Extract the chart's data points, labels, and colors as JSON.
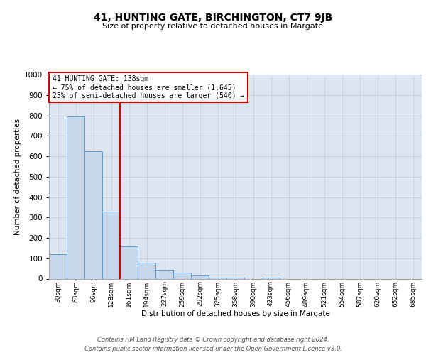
{
  "title": "41, HUNTING GATE, BIRCHINGTON, CT7 9JB",
  "subtitle": "Size of property relative to detached houses in Margate",
  "xlabel": "Distribution of detached houses by size in Margate",
  "ylabel": "Number of detached properties",
  "bin_labels": [
    "30sqm",
    "63sqm",
    "96sqm",
    "128sqm",
    "161sqm",
    "194sqm",
    "227sqm",
    "259sqm",
    "292sqm",
    "325sqm",
    "358sqm",
    "390sqm",
    "423sqm",
    "456sqm",
    "489sqm",
    "521sqm",
    "554sqm",
    "587sqm",
    "620sqm",
    "652sqm",
    "685sqm"
  ],
  "bar_values": [
    120,
    795,
    625,
    330,
    160,
    78,
    42,
    30,
    15,
    5,
    5,
    0,
    5,
    0,
    0,
    0,
    0,
    0,
    0,
    0,
    0
  ],
  "bar_color": "#c8d8eb",
  "bar_edge_color": "#5b9bd5",
  "grid_color": "#c8d4e0",
  "bg_color": "#dde6f0",
  "red_line_color": "#cc0000",
  "annotation_line1": "41 HUNTING GATE: 138sqm",
  "annotation_line2": "← 75% of detached houses are smaller (1,645)",
  "annotation_line3": "25% of semi-detached houses are larger (540) →",
  "annotation_box_color": "#cc0000",
  "ylim": [
    0,
    1000
  ],
  "yticks": [
    0,
    100,
    200,
    300,
    400,
    500,
    600,
    700,
    800,
    900,
    1000
  ],
  "footer_line1": "Contains HM Land Registry data © Crown copyright and database right 2024.",
  "footer_line2": "Contains public sector information licensed under the Open Government Licence v3.0."
}
